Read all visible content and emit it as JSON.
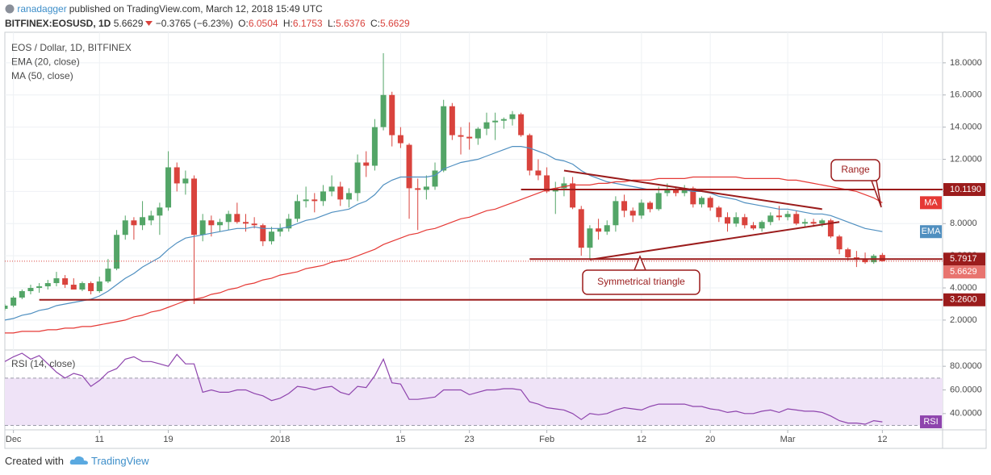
{
  "header": {
    "author": "ranadagger",
    "published": "published on TradingView.com, March 12, 2018 15:49 UTC",
    "symbol": "BITFINEX:EOSUSD, 1D",
    "last": "5.6629",
    "change": "−0.3765 (−6.23%)",
    "ohlc": [
      {
        "label": "O:",
        "value": "6.0504"
      },
      {
        "label": "H:",
        "value": "6.1753"
      },
      {
        "label": "L:",
        "value": "5.6376"
      },
      {
        "label": "C:",
        "value": "5.6629"
      }
    ]
  },
  "chart_data": [
    {
      "type": "candlestick",
      "grid": true,
      "x": [
        "2017-11-30",
        "2017-12-01",
        "2017-12-02",
        "2017-12-03",
        "2017-12-04",
        "2017-12-05",
        "2017-12-06",
        "2017-12-07",
        "2017-12-08",
        "2017-12-09",
        "2017-12-10",
        "2017-12-11",
        "2017-12-12",
        "2017-12-13",
        "2017-12-14",
        "2017-12-15",
        "2017-12-16",
        "2017-12-17",
        "2017-12-18",
        "2017-12-19",
        "2017-12-20",
        "2017-12-21",
        "2017-12-22",
        "2017-12-23",
        "2017-12-24",
        "2017-12-25",
        "2017-12-26",
        "2017-12-27",
        "2017-12-28",
        "2017-12-29",
        "2017-12-30",
        "2017-12-31",
        "2018-01-01",
        "2018-01-02",
        "2018-01-03",
        "2018-01-04",
        "2018-01-05",
        "2018-01-06",
        "2018-01-07",
        "2018-01-08",
        "2018-01-09",
        "2018-01-10",
        "2018-01-11",
        "2018-01-12",
        "2018-01-13",
        "2018-01-14",
        "2018-01-15",
        "2018-01-16",
        "2018-01-17",
        "2018-01-18",
        "2018-01-19",
        "2018-01-20",
        "2018-01-21",
        "2018-01-22",
        "2018-01-23",
        "2018-01-24",
        "2018-01-25",
        "2018-01-26",
        "2018-01-27",
        "2018-01-28",
        "2018-01-29",
        "2018-01-30",
        "2018-01-31",
        "2018-02-01",
        "2018-02-02",
        "2018-02-03",
        "2018-02-04",
        "2018-02-05",
        "2018-02-06",
        "2018-02-07",
        "2018-02-08",
        "2018-02-09",
        "2018-02-10",
        "2018-02-11",
        "2018-02-12",
        "2018-02-13",
        "2018-02-14",
        "2018-02-15",
        "2018-02-16",
        "2018-02-17",
        "2018-02-18",
        "2018-02-19",
        "2018-02-20",
        "2018-02-21",
        "2018-02-22",
        "2018-02-23",
        "2018-02-24",
        "2018-02-25",
        "2018-02-26",
        "2018-02-27",
        "2018-02-28",
        "2018-03-01",
        "2018-03-02",
        "2018-03-03",
        "2018-03-04",
        "2018-03-05",
        "2018-03-06",
        "2018-03-07",
        "2018-03-08",
        "2018-03-09",
        "2018-03-10",
        "2018-03-11",
        "2018-03-12"
      ],
      "xlim": [
        "2017-11-30",
        "2018-03-19"
      ],
      "xticks": [
        {
          "value": "2017-12-01",
          "label": "Dec"
        },
        {
          "value": "2017-12-11",
          "label": "11"
        },
        {
          "value": "2017-12-19",
          "label": "19"
        },
        {
          "value": "2018-01-01",
          "label": "2018"
        },
        {
          "value": "2018-01-15",
          "label": "15"
        },
        {
          "value": "2018-01-23",
          "label": "23"
        },
        {
          "value": "2018-02-01",
          "label": "Feb"
        },
        {
          "value": "2018-02-12",
          "label": "12"
        },
        {
          "value": "2018-02-20",
          "label": "20"
        },
        {
          "value": "2018-03-01",
          "label": "Mar"
        },
        {
          "value": "2018-03-12",
          "label": "12"
        }
      ],
      "ylim": [
        0.24,
        19.9
      ],
      "yticks": [
        {
          "value": 2,
          "label": "2.0000"
        },
        {
          "value": 4,
          "label": "4.0000"
        },
        {
          "value": 6,
          "label": "6.0000"
        },
        {
          "value": 8,
          "label": "8.0000"
        },
        {
          "value": 10,
          "label": "10.0000"
        },
        {
          "value": 12,
          "label": "12.0000"
        },
        {
          "value": 14,
          "label": "14.0000"
        },
        {
          "value": 16,
          "label": "16.0000"
        },
        {
          "value": 18,
          "label": "18.0000"
        }
      ],
      "series": [
        {
          "name": "EOS / Dollar, 1D, BITFINEX",
          "up_color": "#53a567",
          "down_color": "#d9433d",
          "open": [
            2.7,
            2.9,
            3.4,
            3.8,
            4.0,
            4.1,
            4.3,
            4.6,
            4.2,
            3.9,
            4.3,
            3.8,
            4.4,
            5.2,
            7.3,
            8.2,
            7.9,
            8.2,
            8.5,
            9.0,
            11.5,
            10.5,
            10.8,
            7.3,
            8.2,
            7.9,
            8.1,
            8.6,
            8.1,
            8.0,
            7.9,
            6.9,
            7.5,
            7.7,
            8.3,
            9.4,
            9.5,
            9.4,
            10.0,
            10.3,
            9.5,
            9.9,
            11.8,
            11.6,
            14.0,
            16.0,
            13.5,
            12.9,
            10.2,
            10.1,
            10.3,
            11.3,
            15.3,
            13.5,
            13.4,
            13.3,
            13.9,
            14.3,
            14.4,
            14.5,
            14.8,
            13.5,
            11.3,
            11.0,
            10.0,
            10.2,
            10.5,
            8.9,
            6.5,
            7.7,
            7.5,
            7.9,
            9.4,
            8.8,
            8.5,
            9.3,
            8.9,
            9.9,
            10.1,
            9.9,
            10.2,
            9.2,
            9.6,
            9.0,
            8.4,
            8.0,
            8.4,
            7.9,
            7.7,
            8.1,
            8.5,
            8.4,
            8.6,
            8.0,
            8.1,
            8.0,
            8.2,
            7.2,
            6.4,
            5.9,
            5.8,
            5.6,
            6.0504
          ],
          "high": [
            3.0,
            3.5,
            3.9,
            4.2,
            4.3,
            4.5,
            5.0,
            4.8,
            4.6,
            4.4,
            4.4,
            4.7,
            5.8,
            7.6,
            8.5,
            8.4,
            9.4,
            8.8,
            9.3,
            12.5,
            11.8,
            11.3,
            11.0,
            8.6,
            8.5,
            8.3,
            8.8,
            9.3,
            8.6,
            8.4,
            8.0,
            7.8,
            8.0,
            8.6,
            9.8,
            10.3,
            9.9,
            10.4,
            11.0,
            10.6,
            10.2,
            12.3,
            12.5,
            14.5,
            18.6,
            16.2,
            14.0,
            13.0,
            10.8,
            11.0,
            11.8,
            15.7,
            15.5,
            14.0,
            14.3,
            14.0,
            14.9,
            14.9,
            14.6,
            15.0,
            14.9,
            13.6,
            12.0,
            11.5,
            10.6,
            10.9,
            10.9,
            9.1,
            7.9,
            8.3,
            8.2,
            9.7,
            9.8,
            9.0,
            9.5,
            9.4,
            10.3,
            10.5,
            10.3,
            10.4,
            10.3,
            9.7,
            9.7,
            9.1,
            8.7,
            8.7,
            8.6,
            8.1,
            8.2,
            8.7,
            9.1,
            8.8,
            8.8,
            8.3,
            8.3,
            8.3,
            8.3,
            7.3,
            6.5,
            6.3,
            6.2,
            6.1,
            6.1753
          ],
          "low": [
            2.6,
            2.8,
            3.3,
            3.6,
            3.7,
            3.9,
            4.1,
            4.0,
            3.9,
            3.8,
            3.6,
            3.7,
            4.3,
            5.1,
            7.0,
            7.0,
            7.6,
            7.9,
            7.3,
            8.8,
            10.0,
            9.8,
            3.0,
            6.9,
            7.2,
            7.5,
            7.6,
            8.0,
            7.5,
            7.7,
            6.6,
            6.7,
            7.2,
            7.5,
            8.1,
            9.0,
            8.7,
            9.1,
            9.7,
            9.1,
            9.0,
            9.4,
            10.9,
            11.3,
            13.8,
            12.8,
            12.7,
            8.3,
            7.6,
            9.5,
            10.1,
            11.2,
            13.2,
            12.3,
            12.6,
            12.9,
            13.5,
            13.2,
            13.9,
            14.1,
            13.4,
            11.0,
            10.7,
            9.9,
            8.6,
            9.7,
            8.9,
            6.0,
            5.8,
            7.0,
            7.3,
            7.5,
            8.4,
            8.1,
            8.3,
            8.7,
            8.8,
            9.7,
            9.7,
            9.7,
            9.0,
            9.0,
            8.8,
            8.1,
            7.5,
            7.8,
            7.7,
            7.6,
            7.5,
            7.9,
            8.2,
            8.2,
            7.9,
            7.8,
            7.8,
            7.8,
            7.1,
            6.1,
            5.7,
            5.3,
            5.5,
            5.5,
            5.6376
          ],
          "close": [
            2.9,
            3.4,
            3.8,
            4.0,
            4.1,
            4.3,
            4.6,
            4.2,
            3.9,
            4.3,
            3.8,
            4.4,
            5.2,
            7.3,
            8.2,
            7.9,
            8.4,
            8.5,
            9.0,
            11.5,
            10.5,
            10.8,
            7.3,
            8.2,
            7.9,
            8.1,
            8.6,
            8.1,
            8.0,
            7.9,
            6.9,
            7.5,
            7.7,
            8.3,
            9.4,
            9.5,
            9.4,
            10.0,
            10.3,
            9.5,
            9.9,
            11.8,
            11.6,
            14.0,
            16.0,
            13.5,
            13.0,
            10.2,
            10.1,
            10.3,
            11.3,
            15.3,
            13.5,
            13.4,
            13.3,
            13.9,
            14.3,
            14.4,
            14.5,
            14.8,
            13.5,
            11.3,
            11.0,
            10.0,
            10.2,
            10.5,
            9.0,
            6.5,
            7.7,
            7.5,
            7.9,
            9.4,
            8.8,
            8.5,
            9.3,
            8.9,
            9.9,
            10.1,
            9.9,
            10.2,
            9.2,
            9.6,
            9.0,
            8.4,
            8.0,
            8.4,
            7.9,
            7.7,
            8.1,
            8.5,
            8.4,
            8.6,
            8.0,
            8.1,
            8.0,
            8.2,
            7.2,
            6.4,
            5.9,
            5.8,
            5.6,
            6.0,
            5.6629
          ]
        },
        {
          "name": "EMA (20, close)",
          "tag": "EMA",
          "color": "#4f8fc0",
          "values": [
            2.0,
            2.1,
            2.3,
            2.4,
            2.6,
            2.7,
            2.9,
            3.0,
            3.1,
            3.2,
            3.3,
            3.5,
            3.8,
            4.2,
            4.6,
            4.9,
            5.3,
            5.6,
            5.9,
            6.4,
            6.8,
            7.1,
            7.2,
            7.3,
            7.4,
            7.5,
            7.6,
            7.7,
            7.7,
            7.8,
            7.7,
            7.7,
            7.7,
            7.8,
            8.0,
            8.2,
            8.3,
            8.5,
            8.7,
            8.8,
            8.9,
            9.2,
            9.4,
            9.8,
            10.4,
            10.7,
            10.9,
            10.9,
            10.9,
            10.9,
            11.0,
            11.4,
            11.6,
            11.8,
            11.9,
            12.0,
            12.2,
            12.4,
            12.6,
            12.8,
            12.8,
            12.7,
            12.5,
            12.3,
            12.0,
            11.9,
            11.7,
            11.3,
            11.0,
            10.8,
            10.6,
            10.5,
            10.4,
            10.3,
            10.2,
            10.1,
            10.1,
            10.1,
            10.1,
            10.1,
            10.0,
            10.0,
            9.9,
            9.7,
            9.6,
            9.5,
            9.3,
            9.2,
            9.1,
            9.0,
            8.9,
            8.9,
            8.8,
            8.7,
            8.6,
            8.6,
            8.5,
            8.3,
            8.1,
            7.9,
            7.7,
            7.6,
            7.5
          ]
        },
        {
          "name": "MA (50, close)",
          "tag": "MA",
          "color": "#e53935",
          "values": [
            1.2,
            1.2,
            1.3,
            1.3,
            1.3,
            1.4,
            1.4,
            1.5,
            1.5,
            1.6,
            1.6,
            1.7,
            1.8,
            1.9,
            2.0,
            2.2,
            2.3,
            2.5,
            2.6,
            2.8,
            3.0,
            3.2,
            3.3,
            3.4,
            3.6,
            3.7,
            3.9,
            4.0,
            4.2,
            4.3,
            4.5,
            4.6,
            4.8,
            4.9,
            5.0,
            5.2,
            5.3,
            5.4,
            5.6,
            5.7,
            5.8,
            6.0,
            6.2,
            6.4,
            6.7,
            6.9,
            7.1,
            7.3,
            7.4,
            7.6,
            7.7,
            7.9,
            8.1,
            8.3,
            8.4,
            8.6,
            8.8,
            8.9,
            9.1,
            9.3,
            9.5,
            9.7,
            9.9,
            10.1,
            10.2,
            10.3,
            10.4,
            10.4,
            10.4,
            10.5,
            10.5,
            10.6,
            10.6,
            10.7,
            10.7,
            10.7,
            10.8,
            10.8,
            10.8,
            10.8,
            10.9,
            10.9,
            10.9,
            10.9,
            10.9,
            10.9,
            10.8,
            10.8,
            10.8,
            10.8,
            10.8,
            10.7,
            10.7,
            10.6,
            10.5,
            10.4,
            10.3,
            10.2,
            10.1,
            10.0,
            9.8,
            9.6,
            9.3
          ]
        }
      ],
      "levels": [
        {
          "value": 10.119,
          "label": "10.1190",
          "x_from": "2018-01-29",
          "color": "#9b1c1c"
        },
        {
          "value": 5.7917,
          "label": "5.7917",
          "x_from": "2018-01-30",
          "color": "#9b1c1c"
        },
        {
          "value": 3.26,
          "label": "3.2600",
          "x_from": "2017-12-04",
          "color": "#9b1c1c"
        }
      ],
      "trendlines": [
        {
          "x": [
            "2018-02-03",
            "2018-03-05"
          ],
          "y": [
            11.3,
            8.9
          ],
          "color": "#9b1c1c"
        },
        {
          "x": [
            "2018-02-06",
            "2018-03-07"
          ],
          "y": [
            5.76,
            8.1
          ],
          "color": "#9b1c1c"
        }
      ],
      "annotations": [
        {
          "text": "Range"
        },
        {
          "text": "Symmetrical triangle"
        }
      ]
    },
    {
      "type": "line",
      "ylim": [
        28.3,
        91.7
      ],
      "yticks": [
        {
          "value": 40,
          "label": "40.0000"
        },
        {
          "value": 60,
          "label": "60.0000"
        },
        {
          "value": 80,
          "label": "80.0000"
        }
      ],
      "band": [
        30,
        70
      ],
      "band_color": "#efe3f7",
      "series": [
        {
          "name": "RSI (14, close)",
          "tag": "RSI",
          "color": "#8e44ad",
          "values": [
            84,
            88,
            91,
            86,
            89,
            82,
            75,
            70,
            74,
            72,
            63,
            68,
            75,
            78,
            86,
            88,
            84,
            84,
            82,
            80,
            90,
            82,
            82,
            58,
            60,
            58,
            58,
            60,
            60,
            57,
            55,
            51,
            53,
            57,
            63,
            62,
            60,
            62,
            63,
            58,
            56,
            63,
            62,
            72,
            86,
            66,
            65,
            52,
            52,
            53,
            54,
            60,
            60,
            60,
            56,
            58,
            60,
            60,
            61,
            61,
            60,
            50,
            48,
            45,
            44,
            43,
            40,
            35,
            40,
            39,
            40,
            43,
            45,
            44,
            43,
            46,
            48,
            48,
            48,
            48,
            46,
            46,
            44,
            43,
            41,
            42,
            40,
            40,
            42,
            43,
            41,
            44,
            43,
            42,
            42,
            41,
            38,
            34,
            32,
            32,
            31,
            34,
            33
          ]
        }
      ]
    }
  ],
  "footer": {
    "created": "Created with",
    "brand": "TradingView"
  }
}
